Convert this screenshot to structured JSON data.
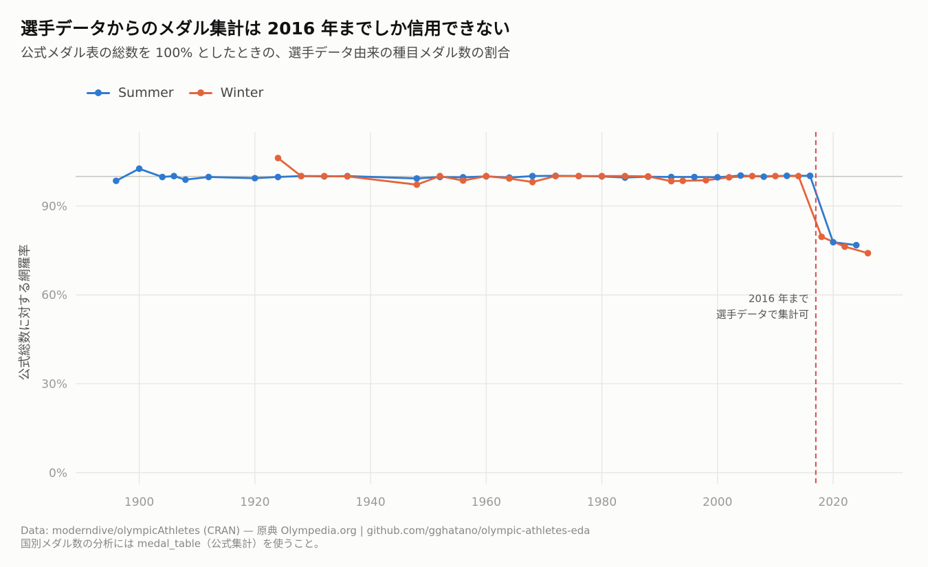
{
  "header": {
    "title": "選手データからのメダル集計は 2016 年までしか信用できない",
    "subtitle": "公式メダル表の総数を 100% としたときの、選手データ由来の種目メダル数の割合"
  },
  "caption": {
    "line1": "Data: moderndive/olympicAthletes (CRAN) — 原典 Olympedia.org | github.com/gghatano/olympic-athletes-eda",
    "line2": "国別メダル数の分析には medal_table（公式集計）を使うこと。"
  },
  "colors": {
    "summer": "#2f7ad0",
    "winter": "#e4643a",
    "reference_line": "#c9c9c1",
    "cutoff_line": "#d24a4a",
    "grid": "#e4e4e0"
  },
  "chart_data": {
    "type": "line",
    "title": "選手データからのメダル集計は 2016 年までしか信用できない",
    "subtitle": "公式メダル表の総数を 100% としたときの、選手データ由来の種目メダル数の割合",
    "xlabel": "",
    "ylabel": "公式総数に対する網羅率",
    "xlim": [
      1889,
      2032
    ],
    "ylim": [
      -4,
      115
    ],
    "x_ticks": [
      1900,
      1920,
      1940,
      1960,
      1980,
      2000,
      2020
    ],
    "y_ticks": [
      0,
      30,
      60,
      90
    ],
    "y_tick_labels": [
      "0%",
      "30%",
      "60%",
      "90%"
    ],
    "reference_y": 100,
    "grid": true,
    "legend_position": "top-left",
    "series": [
      {
        "name": "Summer",
        "color": "#2f7ad0",
        "points": [
          [
            1896,
            98.5
          ],
          [
            1900,
            102.6
          ],
          [
            1904,
            99.8
          ],
          [
            1906,
            100.1
          ],
          [
            1908,
            98.9
          ],
          [
            1912,
            99.8
          ],
          [
            1920,
            99.4
          ],
          [
            1924,
            99.8
          ],
          [
            1928,
            100.1
          ],
          [
            1932,
            100.0
          ],
          [
            1936,
            100.1
          ],
          [
            1948,
            99.3
          ],
          [
            1952,
            99.8
          ],
          [
            1956,
            99.7
          ],
          [
            1960,
            100.0
          ],
          [
            1964,
            99.6
          ],
          [
            1968,
            100.1
          ],
          [
            1972,
            100.2
          ],
          [
            1976,
            100.1
          ],
          [
            1980,
            100.0
          ],
          [
            1984,
            99.6
          ],
          [
            1988,
            99.9
          ],
          [
            1992,
            99.8
          ],
          [
            1996,
            99.8
          ],
          [
            2000,
            99.7
          ],
          [
            2004,
            100.3
          ],
          [
            2008,
            99.9
          ],
          [
            2012,
            100.2
          ],
          [
            2016,
            100.2
          ],
          [
            2020,
            77.8
          ],
          [
            2024,
            76.8
          ]
        ]
      },
      {
        "name": "Winter",
        "color": "#e4643a",
        "points": [
          [
            1924,
            106.2
          ],
          [
            1928,
            100.1
          ],
          [
            1932,
            100.1
          ],
          [
            1936,
            100.0
          ],
          [
            1948,
            97.2
          ],
          [
            1952,
            100.1
          ],
          [
            1956,
            98.6
          ],
          [
            1960,
            100.1
          ],
          [
            1964,
            99.3
          ],
          [
            1968,
            98.1
          ],
          [
            1972,
            100.1
          ],
          [
            1976,
            100.1
          ],
          [
            1980,
            100.1
          ],
          [
            1984,
            100.1
          ],
          [
            1988,
            100.0
          ],
          [
            1992,
            98.4
          ],
          [
            1994,
            98.5
          ],
          [
            1998,
            98.7
          ],
          [
            2002,
            99.7
          ],
          [
            2006,
            100.1
          ],
          [
            2010,
            100.1
          ],
          [
            2014,
            100.1
          ],
          [
            2018,
            79.6
          ],
          [
            2022,
            76.3
          ],
          [
            2026,
            74.1
          ]
        ]
      }
    ],
    "cutoff": {
      "x": 2017,
      "label_line1": "2016 年まで",
      "label_line2": "選手データで集計可"
    }
  }
}
